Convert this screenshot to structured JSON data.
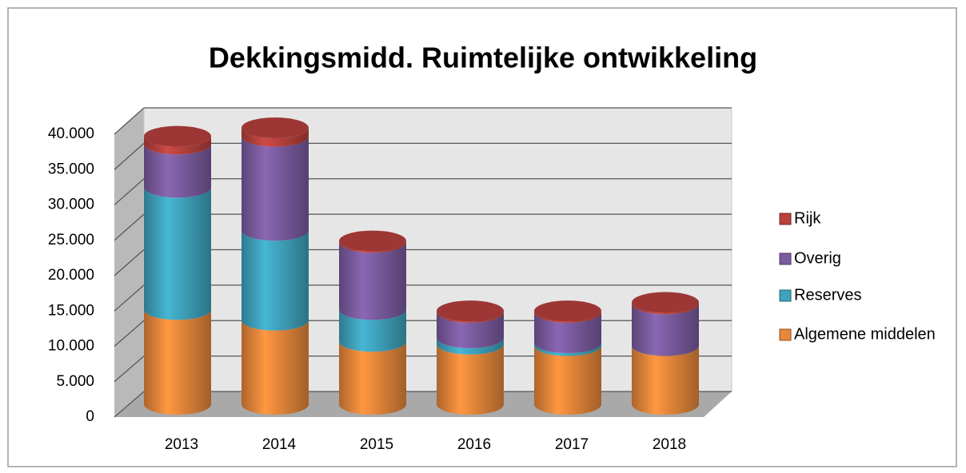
{
  "chart_data": {
    "type": "bar",
    "stacked": true,
    "three_d": true,
    "title": "Dekkingsmidd. Ruimtelijke ontwikkeling",
    "categories": [
      "2013",
      "2014",
      "2015",
      "2016",
      "2017",
      "2018"
    ],
    "series": [
      {
        "name": "Algemene middelen",
        "color": "#e8873a",
        "values": [
          13400,
          11900,
          8900,
          8500,
          8300,
          8300
        ]
      },
      {
        "name": "Reserves",
        "color": "#3fa3bd",
        "values": [
          17300,
          12700,
          4500,
          900,
          400,
          0
        ]
      },
      {
        "name": "Overig",
        "color": "#7b5ca0",
        "values": [
          6100,
          13300,
          9500,
          3600,
          4300,
          5900
        ]
      },
      {
        "name": "Rijk",
        "color": "#b8413e",
        "values": [
          1100,
          1200,
          200,
          200,
          200,
          200
        ]
      }
    ],
    "ylim": [
      0,
      40000
    ],
    "yticks": [
      {
        "value": 0,
        "label": "0"
      },
      {
        "value": 5000,
        "label": "5.000"
      },
      {
        "value": 10000,
        "label": "10.000"
      },
      {
        "value": 15000,
        "label": "15.000"
      },
      {
        "value": 20000,
        "label": "20.000"
      },
      {
        "value": 25000,
        "label": "25.000"
      },
      {
        "value": 30000,
        "label": "30.000"
      },
      {
        "value": 35000,
        "label": "35.000"
      },
      {
        "value": 40000,
        "label": "40.000"
      }
    ],
    "grid": true,
    "legend": "right"
  }
}
